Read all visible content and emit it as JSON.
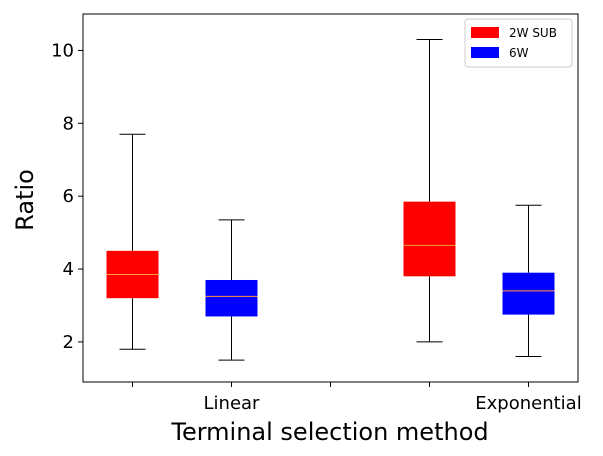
{
  "chart_data": {
    "type": "boxplot",
    "xlabel": "Terminal selection method",
    "ylabel": "Ratio",
    "ylim": [
      0.9,
      11.0
    ],
    "yticks": [
      2,
      4,
      6,
      8,
      10
    ],
    "groups": [
      {
        "label": "Linear"
      },
      {
        "label": "Exponential"
      }
    ],
    "series": [
      {
        "name": "2W SUB",
        "color": "#ff0000",
        "median_color": "#ff9933",
        "boxes": [
          {
            "group": "Linear",
            "whisker_low": 1.8,
            "q1": 3.2,
            "median": 3.85,
            "q3": 4.5,
            "whisker_high": 7.7
          },
          {
            "group": "Exponential",
            "whisker_low": 2.0,
            "q1": 3.8,
            "median": 4.65,
            "q3": 5.85,
            "whisker_high": 10.3
          }
        ]
      },
      {
        "name": "6W",
        "color": "#0000ff",
        "median_color": "#ff9933",
        "boxes": [
          {
            "group": "Linear",
            "whisker_low": 1.5,
            "q1": 2.7,
            "median": 3.25,
            "q3": 3.7,
            "whisker_high": 5.35
          },
          {
            "group": "Exponential",
            "whisker_low": 1.6,
            "q1": 2.75,
            "median": 3.4,
            "q3": 3.9,
            "whisker_high": 5.75
          }
        ]
      }
    ],
    "legend": {
      "position": "top-right"
    }
  }
}
